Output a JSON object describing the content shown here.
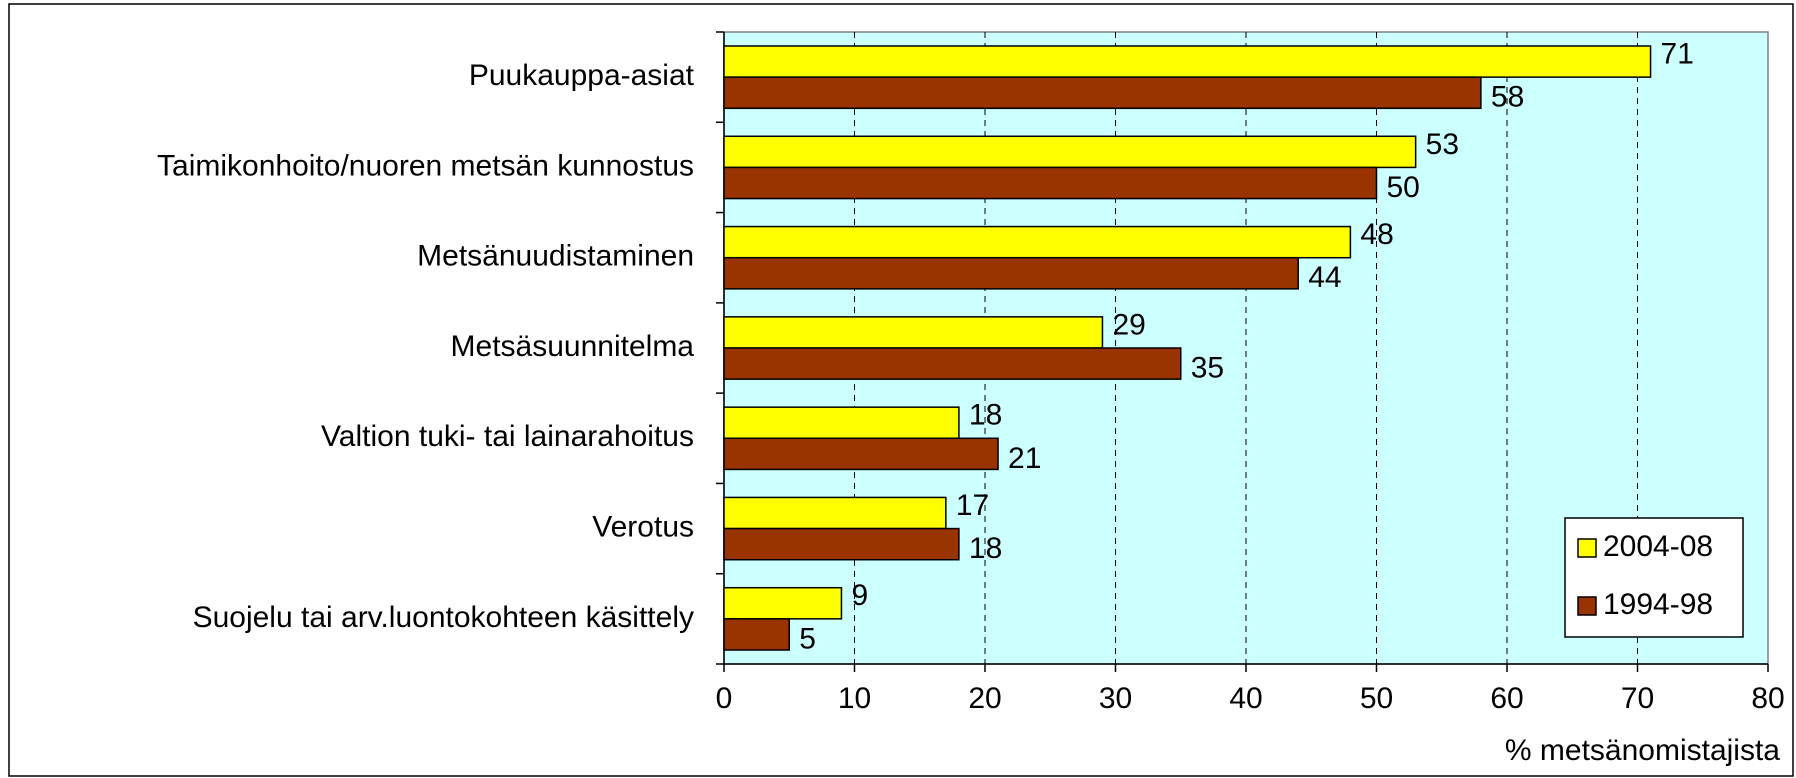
{
  "chart_data": {
    "type": "bar",
    "orientation": "horizontal",
    "categories": [
      "Puukauppa-asiat",
      "Taimikonhoito/nuoren metsän kunnostus",
      "Metsänuudistaminen",
      "Metsäsuunnitelma",
      "Valtion tuki- tai lainarahoitus",
      "Verotus",
      "Suojelu tai arv.luontokohteen käsittely"
    ],
    "series": [
      {
        "name": "2004-08",
        "color": "#ffff00",
        "values": [
          71,
          53,
          48,
          29,
          18,
          17,
          9
        ]
      },
      {
        "name": "1994-98",
        "color": "#993300",
        "values": [
          58,
          50,
          44,
          35,
          21,
          18,
          5
        ]
      }
    ],
    "x_label": "% metsänomistajista",
    "xlim": [
      0,
      80
    ],
    "xticks": [
      0,
      10,
      20,
      30,
      40,
      50,
      60,
      70,
      80
    ],
    "grid": true,
    "legend": "lower right",
    "plot_background": "#ccffff"
  }
}
